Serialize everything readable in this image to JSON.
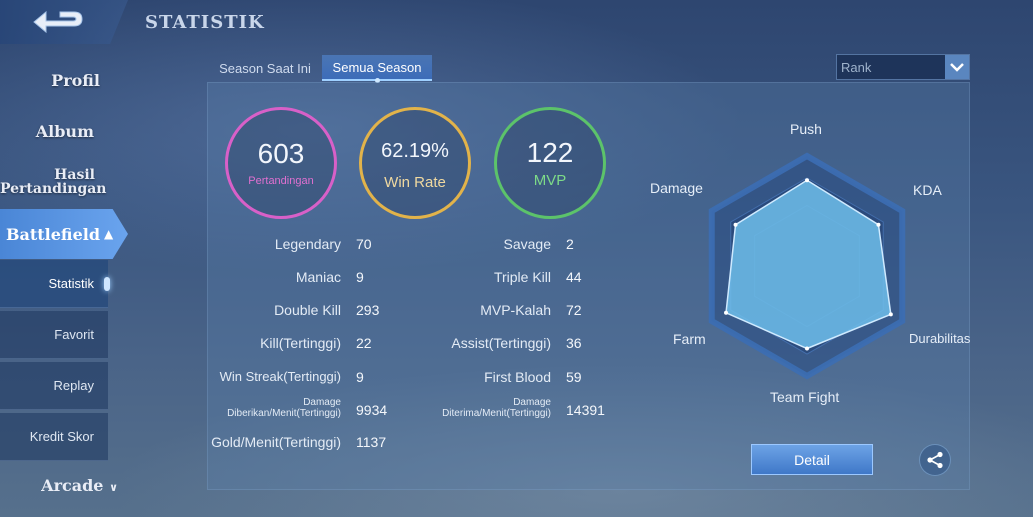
{
  "header": {
    "title": "STATISTIK"
  },
  "sidebar": {
    "profil": "Profil",
    "album": "Album",
    "hasil_line1": "Hasil",
    "hasil_line2": "Pertandingan",
    "battlefield": "Battlefield",
    "sub_items": [
      "Statistik",
      "Favorit",
      "Replay",
      "Kredit Skor"
    ],
    "arcade": "Arcade"
  },
  "tabs": [
    "Season Saat Ini",
    "Semua Season"
  ],
  "rank_select": {
    "value": "Rank"
  },
  "summary": {
    "matches": {
      "value": "603",
      "label": "Pertandingan"
    },
    "win_rate": {
      "value": "62.19%",
      "label": "Win Rate"
    },
    "mvp": {
      "value": "122",
      "label": "MVP"
    }
  },
  "stats_left": [
    {
      "label": "Legendary",
      "value": "70"
    },
    {
      "label": "Maniac",
      "value": "9"
    },
    {
      "label": "Double Kill",
      "value": "293"
    },
    {
      "label": "Kill(Tertinggi)",
      "value": "22"
    },
    {
      "label": "Win Streak(Tertinggi)",
      "value": "9"
    },
    {
      "label": "Damage Diberikan/Menit(Tertinggi)",
      "value": "9934"
    },
    {
      "label": "Gold/Menit(Tertinggi)",
      "value": "1137"
    }
  ],
  "stats_right": [
    {
      "label": "Savage",
      "value": "2"
    },
    {
      "label": "Triple Kill",
      "value": "44"
    },
    {
      "label": "MVP-Kalah",
      "value": "72"
    },
    {
      "label": "Assist(Tertinggi)",
      "value": "36"
    },
    {
      "label": "First Blood",
      "value": "59"
    },
    {
      "label": "Damage Diterima/Menit(Tertinggi)",
      "value": "14391"
    }
  ],
  "radar": {
    "labels": [
      "Push",
      "KDA",
      "Durabilitas",
      "Team Fight",
      "Farm",
      "Damage"
    ],
    "values": [
      0.78,
      0.75,
      0.88,
      0.75,
      0.85,
      0.75
    ]
  },
  "buttons": {
    "detail": "Detail"
  },
  "colors": {
    "matches": "#d860c8",
    "win_rate": "#e2b34a",
    "mvp": "#5cc36a",
    "accent": "#4a86d6"
  }
}
